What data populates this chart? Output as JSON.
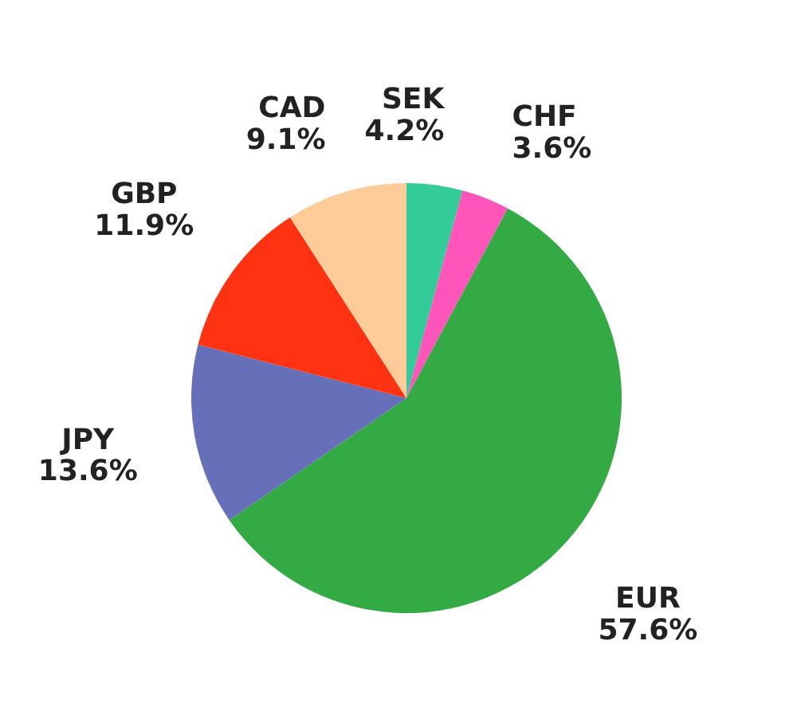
{
  "chart_data": {
    "type": "pie",
    "categories": [
      "SEK",
      "CHF",
      "EUR",
      "JPY",
      "GBP",
      "CAD"
    ],
    "values": [
      4.2,
      3.6,
      57.6,
      13.6,
      11.9,
      9.1
    ],
    "colors": [
      "#33cc99",
      "#ff55bb",
      "#33aa44",
      "#6670b8",
      "#ff3311",
      "#ffcc99"
    ],
    "value_labels": [
      "4.2%",
      "3.6%",
      "57.6%",
      "13.6%",
      "11.9%",
      "9.1%"
    ]
  }
}
